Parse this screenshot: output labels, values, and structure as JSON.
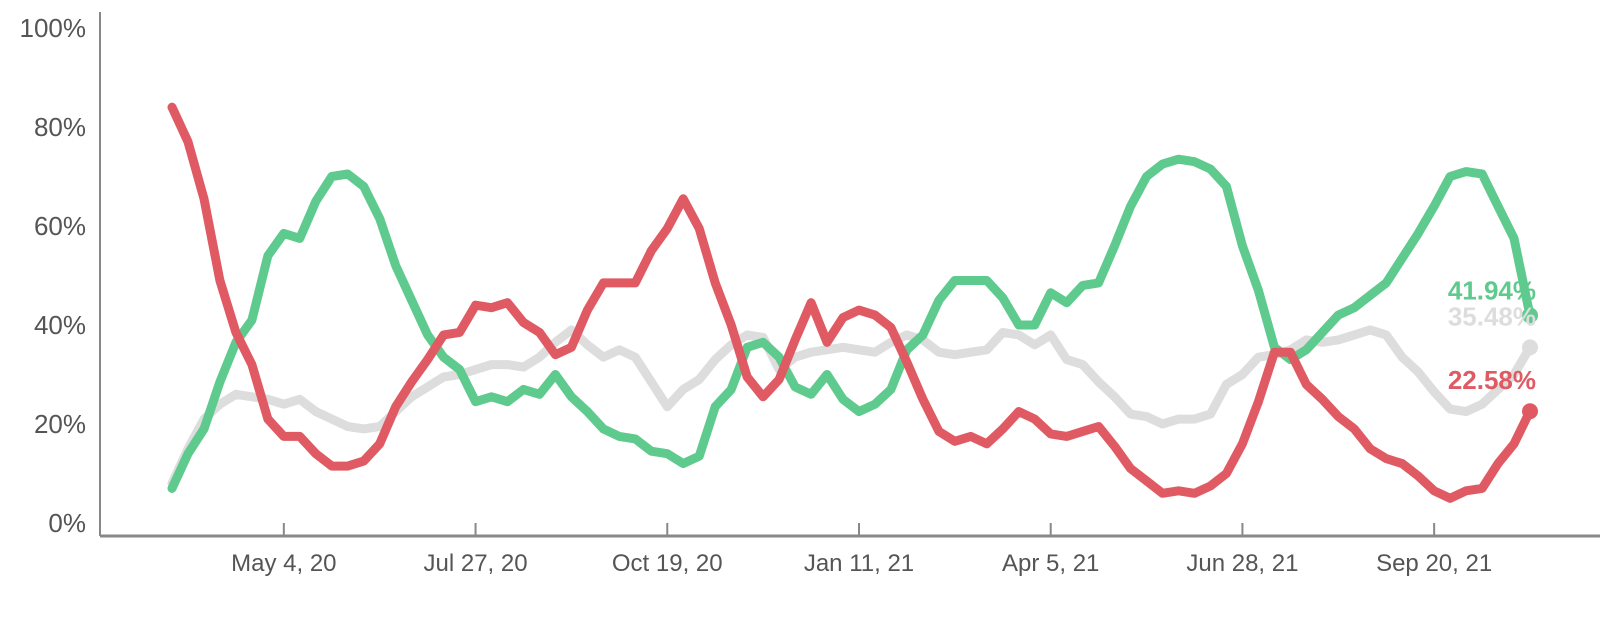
{
  "chart_data": {
    "type": "line",
    "title": "",
    "xlabel": "",
    "ylabel": "",
    "ylim": [
      0,
      100
    ],
    "y_ticks": [
      "0%",
      "20%",
      "40%",
      "60%",
      "80%",
      "100%"
    ],
    "y_tick_values": [
      0,
      20,
      40,
      60,
      80,
      100
    ],
    "x_ticks": [
      "May 4, 20",
      "Jul 27, 20",
      "Oct 19, 20",
      "Jan 11, 21",
      "Apr 5, 21",
      "Jun 28, 21",
      "Sep 20, 21"
    ],
    "x_tick_dates": [
      "2020-05-04",
      "2020-07-27",
      "2020-10-19",
      "2021-01-11",
      "2021-04-05",
      "2021-06-28",
      "2021-09-20"
    ],
    "grid": false,
    "legend": "none",
    "series": [
      {
        "color": "#dddddd",
        "end_label": "35.48%",
        "points": [
          [
            "2020-03-16",
            8
          ],
          [
            "2020-03-23",
            15
          ],
          [
            "2020-03-30",
            21
          ],
          [
            "2020-04-06",
            24
          ],
          [
            "2020-04-13",
            26
          ],
          [
            "2020-04-20",
            25.5
          ],
          [
            "2020-04-27",
            25
          ],
          [
            "2020-05-04",
            24
          ],
          [
            "2020-05-11",
            25
          ],
          [
            "2020-05-18",
            22.5
          ],
          [
            "2020-05-25",
            21
          ],
          [
            "2020-06-01",
            19.5
          ],
          [
            "2020-06-08",
            19
          ],
          [
            "2020-06-15",
            19.5
          ],
          [
            "2020-06-22",
            22.5
          ],
          [
            "2020-06-29",
            25.5
          ],
          [
            "2020-07-06",
            27.5
          ],
          [
            "2020-07-13",
            29.5
          ],
          [
            "2020-07-20",
            30
          ],
          [
            "2020-07-27",
            31
          ],
          [
            "2020-08-03",
            32
          ],
          [
            "2020-08-10",
            32
          ],
          [
            "2020-08-17",
            31.5
          ],
          [
            "2020-08-24",
            33.5
          ],
          [
            "2020-08-31",
            36.5
          ],
          [
            "2020-09-07",
            39
          ],
          [
            "2020-09-14",
            36
          ],
          [
            "2020-09-21",
            33.5
          ],
          [
            "2020-09-28",
            35
          ],
          [
            "2020-10-05",
            33.5
          ],
          [
            "2020-10-12",
            28.5
          ],
          [
            "2020-10-19",
            23.5
          ],
          [
            "2020-10-26",
            27
          ],
          [
            "2020-11-02",
            29
          ],
          [
            "2020-11-09",
            33
          ],
          [
            "2020-11-16",
            36
          ],
          [
            "2020-11-23",
            38
          ],
          [
            "2020-11-30",
            37.5
          ],
          [
            "2020-12-07",
            31
          ],
          [
            "2020-12-14",
            33.5
          ],
          [
            "2020-12-21",
            34.5
          ],
          [
            "2020-12-28",
            35
          ],
          [
            "2021-01-04",
            35.5
          ],
          [
            "2021-01-11",
            35
          ],
          [
            "2021-01-18",
            34.5
          ],
          [
            "2021-01-25",
            36.5
          ],
          [
            "2021-02-01",
            38
          ],
          [
            "2021-02-08",
            37
          ],
          [
            "2021-02-15",
            34.5
          ],
          [
            "2021-02-22",
            34
          ],
          [
            "2021-03-01",
            34.5
          ],
          [
            "2021-03-08",
            35
          ],
          [
            "2021-03-15",
            38.5
          ],
          [
            "2021-03-22",
            38
          ],
          [
            "2021-03-29",
            36
          ],
          [
            "2021-04-05",
            38
          ],
          [
            "2021-04-12",
            33
          ],
          [
            "2021-04-19",
            32
          ],
          [
            "2021-04-26",
            28.5
          ],
          [
            "2021-05-03",
            25.5
          ],
          [
            "2021-05-10",
            22
          ],
          [
            "2021-05-17",
            21.5
          ],
          [
            "2021-05-24",
            20
          ],
          [
            "2021-05-31",
            21
          ],
          [
            "2021-06-07",
            21
          ],
          [
            "2021-06-14",
            22
          ],
          [
            "2021-06-21",
            28
          ],
          [
            "2021-06-28",
            30
          ],
          [
            "2021-07-05",
            33.5
          ],
          [
            "2021-07-12",
            34
          ],
          [
            "2021-07-19",
            35
          ],
          [
            "2021-07-26",
            37
          ],
          [
            "2021-08-02",
            36.5
          ],
          [
            "2021-08-09",
            37
          ],
          [
            "2021-08-16",
            38
          ],
          [
            "2021-08-23",
            39
          ],
          [
            "2021-08-30",
            38
          ],
          [
            "2021-09-06",
            33.5
          ],
          [
            "2021-09-13",
            30.5
          ],
          [
            "2021-09-20",
            26.5
          ],
          [
            "2021-09-27",
            23
          ],
          [
            "2021-10-04",
            22.5
          ],
          [
            "2021-10-11",
            24
          ],
          [
            "2021-10-18",
            27
          ],
          [
            "2021-10-25",
            30
          ],
          [
            "2021-11-01",
            35.48
          ]
        ]
      },
      {
        "color": "#5fca8e",
        "end_label": "41.94%",
        "points": [
          [
            "2020-03-16",
            7
          ],
          [
            "2020-03-23",
            14
          ],
          [
            "2020-03-30",
            19
          ],
          [
            "2020-04-06",
            28.5
          ],
          [
            "2020-04-13",
            36.5
          ],
          [
            "2020-04-20",
            41
          ],
          [
            "2020-04-27",
            54
          ],
          [
            "2020-05-04",
            58.5
          ],
          [
            "2020-05-11",
            57.5
          ],
          [
            "2020-05-18",
            65
          ],
          [
            "2020-05-25",
            70
          ],
          [
            "2020-06-01",
            70.5
          ],
          [
            "2020-06-08",
            68
          ],
          [
            "2020-06-15",
            61.5
          ],
          [
            "2020-06-22",
            52
          ],
          [
            "2020-06-29",
            45
          ],
          [
            "2020-07-06",
            38
          ],
          [
            "2020-07-13",
            33.5
          ],
          [
            "2020-07-20",
            31
          ],
          [
            "2020-07-27",
            24.5
          ],
          [
            "2020-08-03",
            25.5
          ],
          [
            "2020-08-10",
            24.5
          ],
          [
            "2020-08-17",
            27
          ],
          [
            "2020-08-24",
            26
          ],
          [
            "2020-08-31",
            30
          ],
          [
            "2020-09-07",
            25.5
          ],
          [
            "2020-09-14",
            22.5
          ],
          [
            "2020-09-21",
            19
          ],
          [
            "2020-09-28",
            17.5
          ],
          [
            "2020-10-05",
            17
          ],
          [
            "2020-10-12",
            14.5
          ],
          [
            "2020-10-19",
            14
          ],
          [
            "2020-10-26",
            12
          ],
          [
            "2020-11-02",
            13.5
          ],
          [
            "2020-11-09",
            23.5
          ],
          [
            "2020-11-16",
            27
          ],
          [
            "2020-11-23",
            35.5
          ],
          [
            "2020-11-30",
            36.5
          ],
          [
            "2020-12-07",
            33.5
          ],
          [
            "2020-12-14",
            27.5
          ],
          [
            "2020-12-21",
            26
          ],
          [
            "2020-12-28",
            30
          ],
          [
            "2021-01-04",
            25
          ],
          [
            "2021-01-11",
            22.5
          ],
          [
            "2021-01-18",
            24
          ],
          [
            "2021-01-25",
            27
          ],
          [
            "2021-02-01",
            35
          ],
          [
            "2021-02-08",
            38
          ],
          [
            "2021-02-15",
            45
          ],
          [
            "2021-02-22",
            49
          ],
          [
            "2021-03-01",
            49
          ],
          [
            "2021-03-08",
            49
          ],
          [
            "2021-03-15",
            45.5
          ],
          [
            "2021-03-22",
            40
          ],
          [
            "2021-03-29",
            40
          ],
          [
            "2021-04-05",
            46.5
          ],
          [
            "2021-04-12",
            44.5
          ],
          [
            "2021-04-19",
            48
          ],
          [
            "2021-04-26",
            48.5
          ],
          [
            "2021-05-03",
            56
          ],
          [
            "2021-05-10",
            64
          ],
          [
            "2021-05-17",
            70
          ],
          [
            "2021-05-24",
            72.5
          ],
          [
            "2021-05-31",
            73.5
          ],
          [
            "2021-06-07",
            73
          ],
          [
            "2021-06-14",
            71.5
          ],
          [
            "2021-06-21",
            68
          ],
          [
            "2021-06-28",
            56
          ],
          [
            "2021-07-05",
            47
          ],
          [
            "2021-07-12",
            35.5
          ],
          [
            "2021-07-19",
            33
          ],
          [
            "2021-07-26",
            35
          ],
          [
            "2021-08-02",
            38.5
          ],
          [
            "2021-08-09",
            42
          ],
          [
            "2021-08-16",
            43.5
          ],
          [
            "2021-08-23",
            46
          ],
          [
            "2021-08-30",
            48.5
          ],
          [
            "2021-09-06",
            53.5
          ],
          [
            "2021-09-13",
            58.5
          ],
          [
            "2021-09-20",
            64
          ],
          [
            "2021-09-27",
            70
          ],
          [
            "2021-10-04",
            71
          ],
          [
            "2021-10-11",
            70.5
          ],
          [
            "2021-10-18",
            64
          ],
          [
            "2021-10-25",
            57.5
          ],
          [
            "2021-11-01",
            41.94
          ]
        ]
      },
      {
        "color": "#e05a63",
        "end_label": "22.58%",
        "points": [
          [
            "2020-03-16",
            84
          ],
          [
            "2020-03-23",
            77
          ],
          [
            "2020-03-30",
            65.5
          ],
          [
            "2020-04-06",
            49
          ],
          [
            "2020-04-13",
            38.5
          ],
          [
            "2020-04-20",
            32
          ],
          [
            "2020-04-27",
            21
          ],
          [
            "2020-05-04",
            17.5
          ],
          [
            "2020-05-11",
            17.5
          ],
          [
            "2020-05-18",
            14
          ],
          [
            "2020-05-25",
            11.5
          ],
          [
            "2020-06-01",
            11.5
          ],
          [
            "2020-06-08",
            12.5
          ],
          [
            "2020-06-15",
            16
          ],
          [
            "2020-06-22",
            23.5
          ],
          [
            "2020-06-29",
            28.5
          ],
          [
            "2020-07-06",
            33
          ],
          [
            "2020-07-13",
            38
          ],
          [
            "2020-07-20",
            38.5
          ],
          [
            "2020-07-27",
            44
          ],
          [
            "2020-08-03",
            43.5
          ],
          [
            "2020-08-10",
            44.5
          ],
          [
            "2020-08-17",
            40.5
          ],
          [
            "2020-08-24",
            38.5
          ],
          [
            "2020-08-31",
            34
          ],
          [
            "2020-09-07",
            35.5
          ],
          [
            "2020-09-14",
            43
          ],
          [
            "2020-09-21",
            48.5
          ],
          [
            "2020-09-28",
            48.5
          ],
          [
            "2020-10-05",
            48.5
          ],
          [
            "2020-10-12",
            55
          ],
          [
            "2020-10-19",
            59.5
          ],
          [
            "2020-10-26",
            65.5
          ],
          [
            "2020-11-02",
            59.5
          ],
          [
            "2020-11-09",
            48.5
          ],
          [
            "2020-11-16",
            40
          ],
          [
            "2020-11-23",
            29.5
          ],
          [
            "2020-11-30",
            25.5
          ],
          [
            "2020-12-07",
            29
          ],
          [
            "2020-12-14",
            37
          ],
          [
            "2020-12-21",
            44.5
          ],
          [
            "2020-12-28",
            36.5
          ],
          [
            "2021-01-04",
            41.5
          ],
          [
            "2021-01-11",
            43
          ],
          [
            "2021-01-18",
            42
          ],
          [
            "2021-01-25",
            39.5
          ],
          [
            "2021-02-01",
            32.5
          ],
          [
            "2021-02-08",
            25
          ],
          [
            "2021-02-15",
            18.5
          ],
          [
            "2021-02-22",
            16.5
          ],
          [
            "2021-03-01",
            17.5
          ],
          [
            "2021-03-08",
            16
          ],
          [
            "2021-03-15",
            19
          ],
          [
            "2021-03-22",
            22.5
          ],
          [
            "2021-03-29",
            21
          ],
          [
            "2021-04-05",
            18
          ],
          [
            "2021-04-12",
            17.5
          ],
          [
            "2021-04-19",
            18.5
          ],
          [
            "2021-04-26",
            19.5
          ],
          [
            "2021-05-03",
            15.5
          ],
          [
            "2021-05-10",
            11
          ],
          [
            "2021-05-17",
            8.5
          ],
          [
            "2021-05-24",
            6
          ],
          [
            "2021-05-31",
            6.5
          ],
          [
            "2021-06-07",
            6
          ],
          [
            "2021-06-14",
            7.5
          ],
          [
            "2021-06-21",
            10
          ],
          [
            "2021-06-28",
            16
          ],
          [
            "2021-07-05",
            24.5
          ],
          [
            "2021-07-12",
            34.5
          ],
          [
            "2021-07-19",
            34.5
          ],
          [
            "2021-07-26",
            28
          ],
          [
            "2021-08-02",
            25
          ],
          [
            "2021-08-09",
            21.5
          ],
          [
            "2021-08-16",
            19
          ],
          [
            "2021-08-23",
            15
          ],
          [
            "2021-08-30",
            13
          ],
          [
            "2021-09-06",
            12
          ],
          [
            "2021-09-13",
            9.5
          ],
          [
            "2021-09-20",
            6.5
          ],
          [
            "2021-09-27",
            5
          ],
          [
            "2021-10-04",
            6.5
          ],
          [
            "2021-10-11",
            7
          ],
          [
            "2021-10-18",
            12
          ],
          [
            "2021-10-25",
            16
          ],
          [
            "2021-11-01",
            22.58
          ]
        ]
      }
    ]
  }
}
